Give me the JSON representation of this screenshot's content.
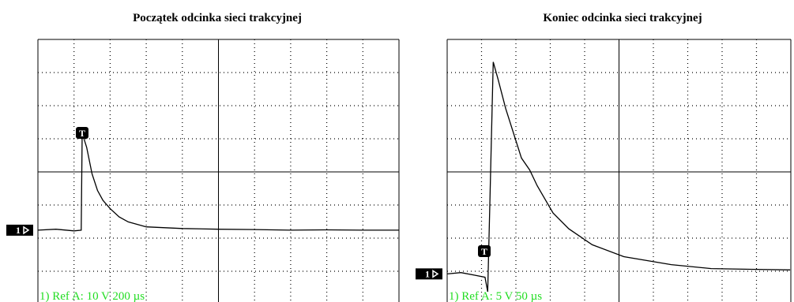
{
  "chart_data": [
    {
      "type": "line",
      "title": "Początek odcinka sieci trakcyjnej",
      "scale_label": "1) Ref A:     10 V   200 µs",
      "channel_label": "1",
      "trigger_label": "T",
      "color": "#000000",
      "x": [
        0,
        100,
        200,
        240,
        245,
        250,
        270,
        300,
        330,
        360,
        400,
        450,
        500,
        600,
        800,
        1000,
        1200,
        1400,
        1600,
        1800,
        2000
      ],
      "values": [
        0,
        0.3,
        -0.2,
        0,
        29,
        28.5,
        25,
        17,
        12,
        9,
        6.5,
        4,
        2.5,
        1,
        0.5,
        0.3,
        0.2,
        0,
        0.1,
        0,
        0
      ],
      "xlim": [
        0,
        2000
      ],
      "ylim": [
        -22.4,
        57.6
      ]
    },
    {
      "type": "line",
      "title": "Koniec odcinka sieci trakcyjnej",
      "scale_label": "1) Ref A:     5 V   50 µs",
      "channel_label": "1",
      "trigger_label": "T",
      "color": "#000000",
      "x": [
        0,
        20,
        40,
        55,
        59,
        62,
        67,
        74,
        85,
        108,
        120,
        131,
        154,
        177,
        211,
        257,
        326,
        384,
        440,
        499
      ],
      "values": [
        0,
        0.2,
        -0.2,
        -0.5,
        -2.7,
        10,
        32,
        29.4,
        25,
        17.5,
        15.7,
        13.3,
        9.2,
        6.8,
        4.4,
        2.6,
        1.4,
        0.8,
        0.7,
        0.6
      ],
      "xlim": [
        0,
        500
      ],
      "ylim": [
        -4.6,
        35.4
      ]
    }
  ]
}
